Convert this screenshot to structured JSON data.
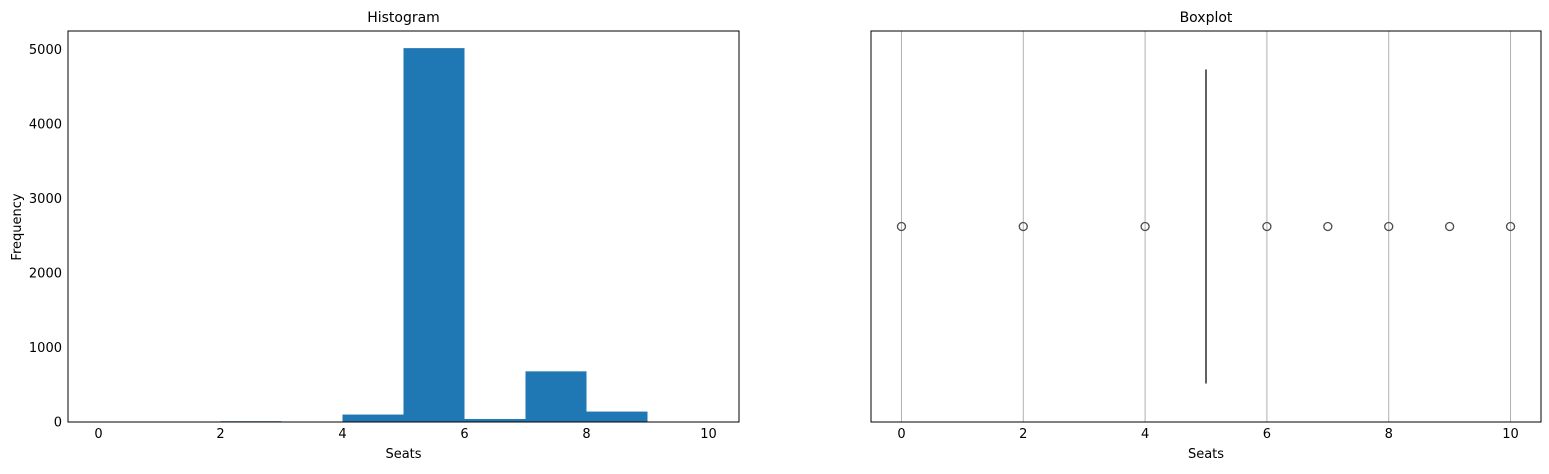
{
  "chart_data": [
    {
      "type": "bar",
      "title": "Histogram",
      "xlabel": "Seats",
      "ylabel": "Frequency",
      "xlim": [
        -0.5,
        10.5
      ],
      "ylim": [
        0,
        5250
      ],
      "xticks": [
        0,
        2,
        4,
        6,
        8,
        10
      ],
      "yticks": [
        0,
        1000,
        2000,
        3000,
        4000,
        5000
      ],
      "bins": [
        {
          "x0": 0,
          "x1": 1,
          "value": 1
        },
        {
          "x0": 1,
          "x1": 2,
          "value": 0
        },
        {
          "x0": 2,
          "x1": 3,
          "value": 10
        },
        {
          "x0": 3,
          "x1": 4,
          "value": 3
        },
        {
          "x0": 4,
          "x1": 5,
          "value": 100
        },
        {
          "x0": 5,
          "x1": 6,
          "value": 5020
        },
        {
          "x0": 6,
          "x1": 7,
          "value": 40
        },
        {
          "x0": 7,
          "x1": 8,
          "value": 680
        },
        {
          "x0": 8,
          "x1": 9,
          "value": 140
        },
        {
          "x0": 9,
          "x1": 10,
          "value": 5
        }
      ],
      "color": "#1f77b4",
      "grid": false
    },
    {
      "type": "scatter",
      "subtype": "boxplot",
      "title": "Boxplot",
      "xlabel": "Seats",
      "xlim": [
        -0.5,
        10.5
      ],
      "xticks": [
        0,
        2,
        4,
        6,
        8,
        10
      ],
      "box": {
        "q1": 5,
        "median": 5,
        "q3": 5,
        "whisker_low": 5,
        "whisker_high": 5
      },
      "outliers": [
        0,
        2,
        4,
        6,
        7,
        8,
        9,
        10
      ],
      "grid": true,
      "color": "#4c4c4c"
    }
  ]
}
